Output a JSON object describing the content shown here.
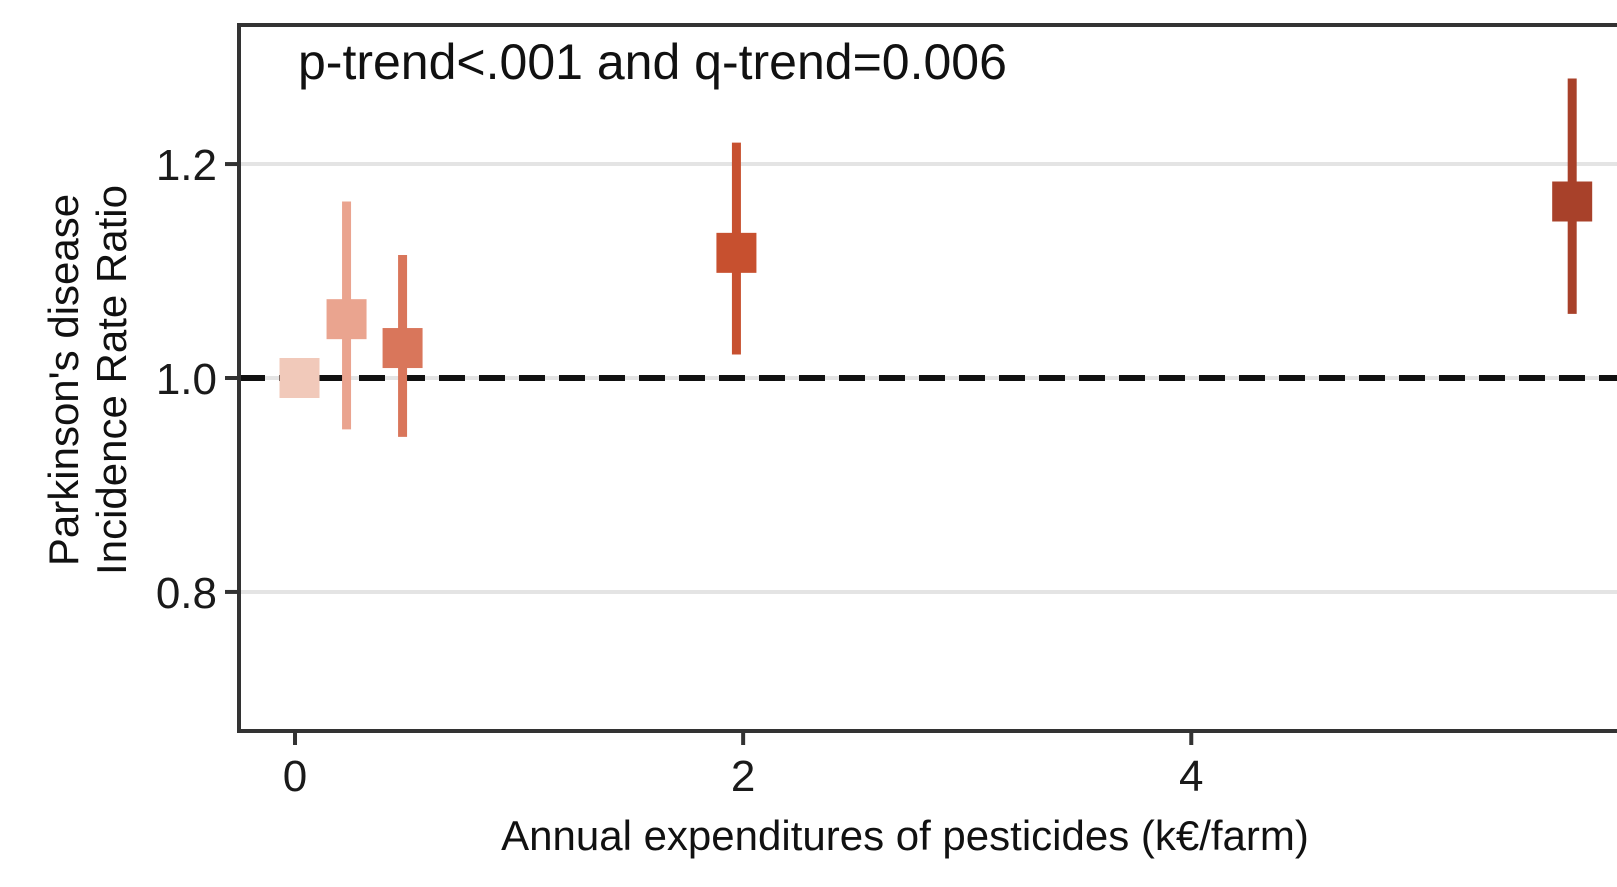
{
  "chart_data": {
    "type": "scatter",
    "annotation": "p-trend<.001 and q-trend=0.006",
    "xlabel": "Annual expenditures of pesticides (k€/farm)",
    "ylabel_line1": "Parkinson's disease",
    "ylabel_line2": "Incidence Rate Ratio",
    "xlim": [
      -0.25,
      5.9
    ],
    "ylim": [
      0.67,
      1.33
    ],
    "x_ticks": [
      0,
      2,
      4
    ],
    "y_ticks": [
      0.8,
      1.0,
      1.2
    ],
    "x_tick_labels": [
      "0",
      "2",
      "4"
    ],
    "y_tick_labels": [
      "0.8",
      "1.0",
      "1.2"
    ],
    "reference_line": 1.0,
    "grid": "horizontal",
    "points": [
      {
        "x": 0.02,
        "estimate": 1.0,
        "lower": 1.0,
        "upper": 1.0,
        "color": "#f1c9ba"
      },
      {
        "x": 0.23,
        "estimate": 1.055,
        "lower": 0.952,
        "upper": 1.165,
        "color": "#eaa48f"
      },
      {
        "x": 0.48,
        "estimate": 1.028,
        "lower": 0.945,
        "upper": 1.115,
        "color": "#d9765b"
      },
      {
        "x": 1.97,
        "estimate": 1.117,
        "lower": 1.022,
        "upper": 1.22,
        "color": "#c7502f"
      },
      {
        "x": 5.7,
        "estimate": 1.165,
        "lower": 1.06,
        "upper": 1.28,
        "color": "#a8412a"
      }
    ]
  }
}
